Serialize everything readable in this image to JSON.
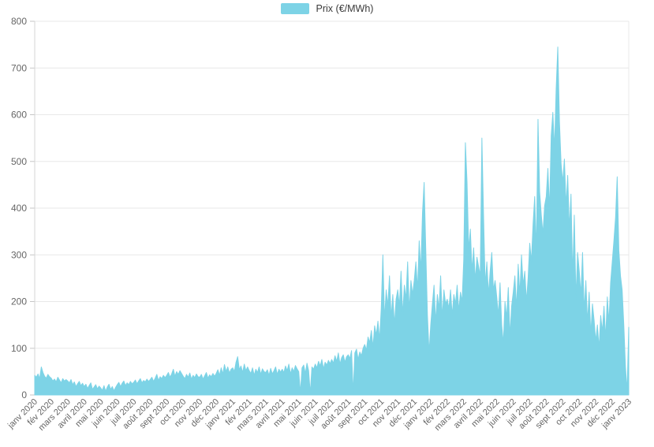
{
  "legend": {
    "label": "Prix (€/MWh)"
  },
  "chart_data": {
    "type": "area",
    "title": "",
    "xlabel": "",
    "ylabel": "",
    "legend_position": "top-center",
    "grid": true,
    "ylim": [
      0,
      800
    ],
    "y_ticks": [
      0,
      100,
      200,
      300,
      400,
      500,
      600,
      700,
      800
    ],
    "x_tick_labels": [
      "janv 2020",
      "fév 2020",
      "mars 2020",
      "avril 2020",
      "mai 2020",
      "juin 2020",
      "juil 2020",
      "août 2020",
      "sept 2020",
      "oct 2020",
      "nov 2020",
      "déc 2020",
      "janv 2021",
      "fév 2021",
      "mars 2021",
      "avril 2021",
      "mai 2021",
      "juin 2021",
      "juil 2021",
      "août 2021",
      "sept 2021",
      "oct 2021",
      "nov 2021",
      "déc 2021",
      "janv 2022",
      "fév 2022",
      "mars 2022",
      "avril 2022",
      "mai 2022",
      "juin 2022",
      "juil 2022",
      "août 2022",
      "sept 2022",
      "oct 2022",
      "nov 2022",
      "déc 2022",
      "janv 2023"
    ],
    "x_points_per_month": 10,
    "series": [
      {
        "name": "Prix (€/MWh)",
        "color": "#7dd3e6",
        "values": [
          42,
          38,
          45,
          35,
          60,
          48,
          40,
          36,
          44,
          39,
          36,
          30,
          34,
          28,
          38,
          32,
          26,
          35,
          30,
          33,
          30,
          26,
          33,
          22,
          28,
          18,
          24,
          29,
          20,
          25,
          18,
          23,
          14,
          20,
          26,
          12,
          17,
          22,
          13,
          19,
          15,
          10,
          20,
          8,
          17,
          23,
          12,
          18,
          9,
          16,
          22,
          27,
          18,
          25,
          30,
          20,
          26,
          22,
          29,
          24,
          27,
          32,
          24,
          30,
          35,
          26,
          31,
          28,
          34,
          29,
          33,
          38,
          29,
          36,
          44,
          31,
          39,
          35,
          42,
          37,
          42,
          48,
          38,
          45,
          55,
          40,
          50,
          44,
          52,
          46,
          40,
          35,
          44,
          38,
          47,
          34,
          42,
          37,
          45,
          39,
          38,
          44,
          34,
          41,
          48,
          36,
          43,
          39,
          46,
          40,
          46,
          54,
          42,
          58,
          45,
          65,
          50,
          60,
          47,
          55,
          58,
          50,
          70,
          82,
          54,
          62,
          48,
          66,
          52,
          60,
          52,
          46,
          58,
          42,
          55,
          48,
          60,
          44,
          56,
          50,
          48,
          54,
          42,
          57,
          45,
          52,
          60,
          44,
          55,
          49,
          55,
          48,
          62,
          52,
          66,
          45,
          58,
          50,
          63,
          56,
          50,
          5,
          58,
          64,
          46,
          68,
          52,
          3,
          60,
          55,
          66,
          58,
          72,
          62,
          76,
          56,
          70,
          64,
          74,
          67,
          76,
          68,
          84,
          72,
          90,
          66,
          80,
          86,
          70,
          82,
          86,
          78,
          95,
          4,
          90,
          98,
          76,
          92,
          84,
          100,
          108,
          96,
          124,
          112,
          138,
          102,
          148,
          128,
          158,
          118,
          185,
          300,
          160,
          225,
          190,
          255,
          165,
          215,
          150,
          205,
          225,
          190,
          265,
          170,
          235,
          205,
          285,
          180,
          245,
          215,
          245,
          285,
          225,
          330,
          265,
          390,
          455,
          310,
          170,
          90,
          150,
          195,
          235,
          155,
          215,
          185,
          255,
          165,
          225,
          195,
          205,
          185,
          225,
          170,
          215,
          195,
          235,
          180,
          220,
          200,
          290,
          540,
          455,
          310,
          355,
          265,
          315,
          245,
          295,
          275,
          255,
          550,
          385,
          235,
          285,
          215,
          265,
          305,
          225,
          245,
          210,
          170,
          240,
          150,
          110,
          200,
          165,
          230,
          125,
          190,
          220,
          255,
          185,
          280,
          215,
          300,
          235,
          265,
          200,
          250,
          325,
          285,
          365,
          425,
          305,
          590,
          435,
          385,
          345,
          405,
          425,
          485,
          395,
          555,
          605,
          525,
          655,
          745,
          585,
          495,
          455,
          505,
          405,
          470,
          355,
          430,
          255,
          385,
          205,
          305,
          265,
          215,
          305,
          180,
          245,
          155,
          220,
          130,
          195,
          160,
          115,
          150,
          100,
          170,
          135,
          190,
          120,
          210,
          155,
          240,
          285,
          330,
          380,
          467,
          310,
          255,
          225,
          150,
          60,
          8,
          145
        ]
      }
    ]
  }
}
